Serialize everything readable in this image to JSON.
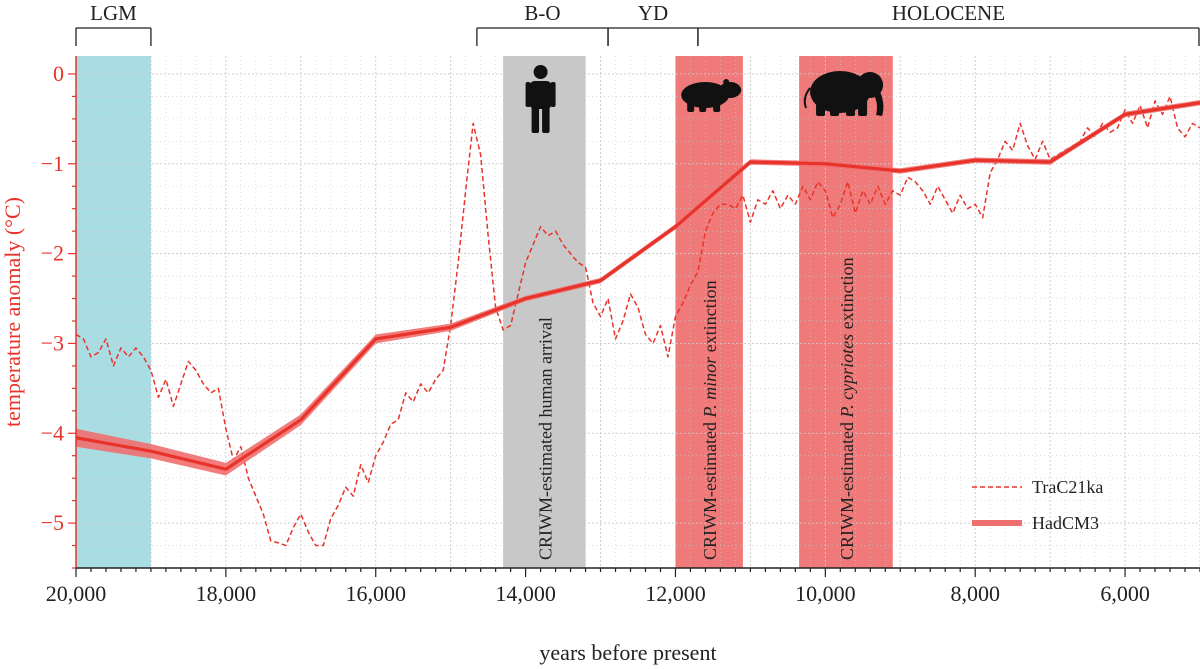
{
  "chart_data": {
    "type": "line",
    "xlabel": "years before present",
    "ylabel": "temperature anomaly (°C)",
    "xlim": [
      20000,
      5000
    ],
    "ylim": [
      -5.5,
      0.2
    ],
    "x_ticks": [
      20000,
      18000,
      16000,
      14000,
      12000,
      10000,
      8000,
      6000
    ],
    "x_tick_labels": [
      "20,000",
      "18,000",
      "16,000",
      "14,000",
      "12,000",
      "10,000",
      "8,000",
      "6,000"
    ],
    "y_ticks": [
      0,
      -1,
      -2,
      -3,
      -4,
      -5
    ],
    "y_tick_labels": [
      "0",
      "−1",
      "−2",
      "−3",
      "−4",
      "−5"
    ],
    "grid": true,
    "legend_position": "bottom-right",
    "series": [
      {
        "name": "TraC21ka",
        "style": "dashed",
        "color": "#e8332a",
        "x": [
          20000,
          19900,
          19800,
          19700,
          19600,
          19500,
          19400,
          19300,
          19200,
          19100,
          19000,
          18900,
          18800,
          18700,
          18600,
          18500,
          18400,
          18300,
          18200,
          18100,
          18000,
          17900,
          17800,
          17700,
          17600,
          17500,
          17400,
          17300,
          17200,
          17100,
          17000,
          16900,
          16800,
          16700,
          16600,
          16500,
          16400,
          16300,
          16200,
          16100,
          16000,
          15900,
          15800,
          15700,
          15600,
          15500,
          15400,
          15300,
          15200,
          15100,
          15000,
          14900,
          14800,
          14700,
          14600,
          14500,
          14400,
          14300,
          14200,
          14100,
          14000,
          13900,
          13800,
          13700,
          13600,
          13500,
          13400,
          13300,
          13200,
          13100,
          13000,
          12900,
          12800,
          12700,
          12600,
          12500,
          12400,
          12300,
          12200,
          12100,
          12000,
          11900,
          11800,
          11700,
          11600,
          11500,
          11400,
          11300,
          11200,
          11100,
          11000,
          10900,
          10800,
          10700,
          10600,
          10500,
          10400,
          10300,
          10200,
          10100,
          10000,
          9900,
          9800,
          9700,
          9600,
          9500,
          9400,
          9300,
          9200,
          9100,
          9000,
          8900,
          8800,
          8700,
          8600,
          8500,
          8400,
          8300,
          8200,
          8100,
          8000,
          7900,
          7800,
          7700,
          7600,
          7500,
          7400,
          7300,
          7200,
          7100,
          7000,
          6900,
          6800,
          6700,
          6600,
          6500,
          6400,
          6300,
          6200,
          6100,
          6000,
          5900,
          5800,
          5700,
          5600,
          5500,
          5400,
          5300,
          5200,
          5100,
          5000
        ],
        "y": [
          -2.9,
          -2.95,
          -3.15,
          -3.1,
          -2.95,
          -3.25,
          -3.05,
          -3.15,
          -3.05,
          -3.15,
          -3.3,
          -3.6,
          -3.4,
          -3.7,
          -3.45,
          -3.2,
          -3.3,
          -3.45,
          -3.55,
          -3.5,
          -3.95,
          -4.3,
          -4.15,
          -4.5,
          -4.7,
          -4.9,
          -5.2,
          -5.22,
          -5.25,
          -5.05,
          -4.9,
          -5.1,
          -5.25,
          -5.25,
          -4.95,
          -4.8,
          -4.6,
          -4.7,
          -4.35,
          -4.55,
          -4.25,
          -4.1,
          -3.9,
          -3.85,
          -3.55,
          -3.65,
          -3.45,
          -3.55,
          -3.4,
          -3.3,
          -2.8,
          -2.1,
          -1.3,
          -0.55,
          -0.9,
          -1.8,
          -2.6,
          -2.85,
          -2.8,
          -2.45,
          -2.1,
          -1.9,
          -1.7,
          -1.8,
          -1.75,
          -1.9,
          -2.0,
          -2.1,
          -2.15,
          -2.55,
          -2.7,
          -2.5,
          -2.95,
          -2.75,
          -2.45,
          -2.6,
          -2.9,
          -3.0,
          -2.8,
          -3.15,
          -2.7,
          -2.55,
          -2.35,
          -2.2,
          -1.75,
          -1.55,
          -1.45,
          -1.45,
          -1.5,
          -1.35,
          -1.65,
          -1.4,
          -1.45,
          -1.3,
          -1.5,
          -1.35,
          -1.45,
          -1.25,
          -1.4,
          -1.2,
          -1.3,
          -1.6,
          -1.45,
          -1.2,
          -1.55,
          -1.3,
          -1.45,
          -1.25,
          -1.45,
          -1.3,
          -1.35,
          -1.15,
          -1.2,
          -1.3,
          -1.45,
          -1.25,
          -1.4,
          -1.55,
          -1.35,
          -1.5,
          -1.45,
          -1.6,
          -1.1,
          -0.95,
          -0.75,
          -0.85,
          -0.55,
          -0.8,
          -0.95,
          -0.75,
          -0.95,
          -0.9,
          -0.85,
          -0.8,
          -0.75,
          -0.6,
          -0.7,
          -0.55,
          -0.65,
          -0.6,
          -0.4,
          -0.55,
          -0.35,
          -0.6,
          -0.3,
          -0.45,
          -0.25,
          -0.6,
          -0.7,
          -0.55,
          -0.6
        ]
      },
      {
        "name": "HadCM3",
        "style": "solid-band",
        "color": "#e8332a",
        "band_color": "#ef6f6f",
        "x": [
          20000,
          19000,
          18000,
          17000,
          16000,
          15000,
          14000,
          13000,
          12000,
          11000,
          10000,
          9000,
          8000,
          7000,
          6000,
          5000
        ],
        "y": [
          -4.05,
          -4.2,
          -4.4,
          -3.85,
          -2.95,
          -2.82,
          -2.5,
          -2.3,
          -1.7,
          -0.98,
          -1.0,
          -1.08,
          -0.96,
          -0.98,
          -0.45,
          -0.32
        ],
        "band_halfwidth": [
          0.1,
          0.08,
          0.07,
          0.06,
          0.05,
          0.04,
          0.03,
          0.03,
          0.03,
          0.03,
          0.03,
          0.03,
          0.03,
          0.03,
          0.03,
          0.03
        ]
      }
    ],
    "shaded_regions": [
      {
        "x": [
          20000,
          19000
        ],
        "color": "#a9dde4",
        "label": ""
      },
      {
        "x": [
          14300,
          13200
        ],
        "color": "#c8c8c8",
        "label": "CRIWM-estimated human arrival"
      },
      {
        "x": [
          12000,
          11100
        ],
        "color": "#f07a7a",
        "label_parts": [
          "CRIWM-estimated ",
          "P. minor",
          " extinction"
        ]
      },
      {
        "x": [
          10350,
          9100
        ],
        "color": "#f07a7a",
        "label_parts": [
          "CRIWM-estimated ",
          "P. cypriotes",
          " extinction"
        ]
      }
    ],
    "periods": [
      {
        "label": "LGM",
        "x": [
          20000,
          19000
        ]
      },
      {
        "label": "B-O",
        "x": [
          14650,
          12900
        ]
      },
      {
        "label": "YD",
        "x": [
          12900,
          11700
        ]
      },
      {
        "label": "HOLOCENE",
        "x": [
          11700,
          5000
        ]
      }
    ],
    "icons": [
      {
        "name": "human-icon",
        "x": 13800
      },
      {
        "name": "hippo-icon",
        "x": 11550
      },
      {
        "name": "elephant-icon",
        "x": 9750
      }
    ],
    "colors": {
      "axis_red": "#e8332a",
      "grid": "#c9c9c9"
    }
  }
}
